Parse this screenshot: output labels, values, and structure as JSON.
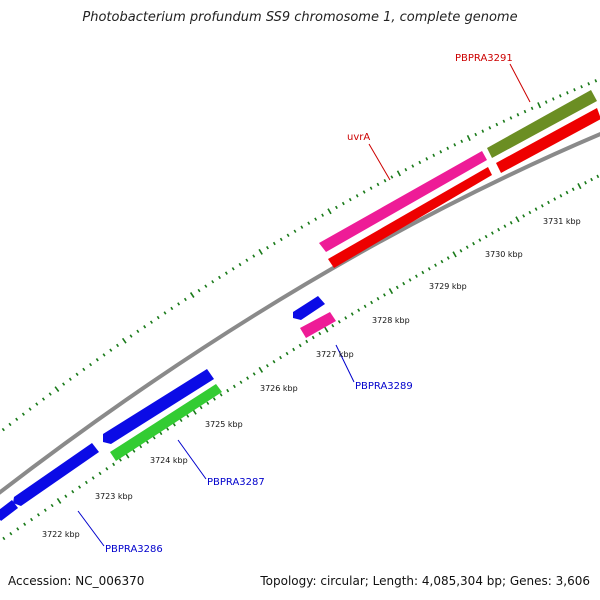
{
  "title": "Photobacterium profundum SS9 chromosome 1, complete genome",
  "footer": {
    "accession": "Accession: NC_006370",
    "summary": "Topology: circular; Length: 4,085,304 bp; Genes: 3,606"
  },
  "colors": {
    "backbone": "#8a8a8a",
    "ticks": "#1a7a1a",
    "blue": "#0b0be6",
    "red": "#ee0000",
    "magenta": "#ee1c97",
    "green": "#33cc33",
    "olive": "#6b8e23",
    "label_blue": "#0000cc",
    "label_red": "#cc0000"
  },
  "scale_labels": [
    "3722 kbp",
    "3723 kbp",
    "3724 kbp",
    "3725 kbp",
    "3726 kbp",
    "3727 kbp",
    "3728 kbp",
    "3729 kbp",
    "3730 kbp",
    "3731 kbp"
  ],
  "gene_labels": {
    "pbpra3286": "PBPRA3286",
    "pbpra3287": "PBPRA3287",
    "pbpra3289": "PBPRA3289",
    "uvra": "uvrA",
    "pbpra3291": "PBPRA3291"
  }
}
